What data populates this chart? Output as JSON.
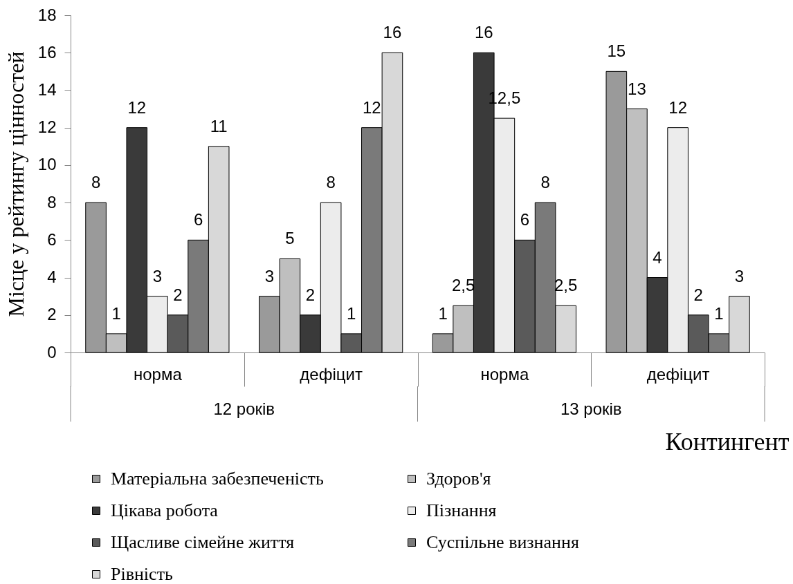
{
  "chart_data": {
    "type": "bar",
    "xlabel": "Контингент",
    "ylabel": "Місце у рейтингу цінностей",
    "categories": [
      "норма",
      "дефіцит",
      "норма",
      "дефіцит"
    ],
    "series": [
      {
        "name": "Матеріальна забезпеченість",
        "color": "#9a9a9a",
        "values": [
          8,
          3,
          1,
          15
        ],
        "value_labels": [
          "8",
          "3",
          "1",
          "15"
        ]
      },
      {
        "name": "Здоров'я",
        "color": "#bfbfbf",
        "values": [
          1,
          5,
          2.5,
          13
        ],
        "value_labels": [
          "1",
          "5",
          "2,5",
          "13"
        ]
      },
      {
        "name": "Цікава робота",
        "color": "#3a3a3a",
        "values": [
          12,
          2,
          16,
          4
        ],
        "value_labels": [
          "12",
          "2",
          "16",
          "4"
        ]
      },
      {
        "name": "Пізнання",
        "color": "#ececec",
        "values": [
          3,
          8,
          12.5,
          12
        ],
        "value_labels": [
          "3",
          "8",
          "12,5",
          "12"
        ]
      },
      {
        "name": "Щасливе сімейне життя",
        "color": "#5a5a5a",
        "values": [
          2,
          1,
          6,
          2
        ],
        "value_labels": [
          "2",
          "1",
          "6",
          "2"
        ]
      },
      {
        "name": "Суспільне визнання",
        "color": "#7a7a7a",
        "values": [
          6,
          12,
          8,
          1
        ],
        "value_labels": [
          "6",
          "12",
          "8",
          "1"
        ]
      },
      {
        "name": "Рівність",
        "color": "#d8d8d8",
        "values": [
          11,
          16,
          2.5,
          3
        ],
        "value_labels": [
          "11",
          "16",
          "2,5",
          "3"
        ]
      }
    ],
    "ylim": [
      0,
      18
    ],
    "yticks": [
      0,
      2,
      4,
      6,
      8,
      10,
      12,
      14,
      16,
      18
    ],
    "legend": "bottom",
    "annotations": [
      "12 років",
      "13 років"
    ]
  }
}
